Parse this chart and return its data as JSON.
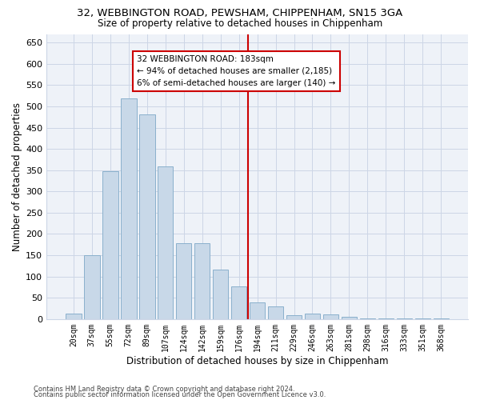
{
  "title_line1": "32, WEBBINGTON ROAD, PEWSHAM, CHIPPENHAM, SN15 3GA",
  "title_line2": "Size of property relative to detached houses in Chippenham",
  "xlabel": "Distribution of detached houses by size in Chippenham",
  "ylabel": "Number of detached properties",
  "bar_color": "#c8d8e8",
  "bar_edgecolor": "#8ab0cc",
  "vline_color": "#cc0000",
  "vline_bin": 9,
  "annotation_text": "32 WEBBINGTON ROAD: 183sqm\n← 94% of detached houses are smaller (2,185)\n6% of semi-detached houses are larger (140) →",
  "annotation_box_color": "#cc0000",
  "categories": [
    "20sqm",
    "37sqm",
    "55sqm",
    "72sqm",
    "89sqm",
    "107sqm",
    "124sqm",
    "142sqm",
    "159sqm",
    "176sqm",
    "194sqm",
    "211sqm",
    "229sqm",
    "246sqm",
    "263sqm",
    "281sqm",
    "298sqm",
    "316sqm",
    "333sqm",
    "351sqm",
    "368sqm"
  ],
  "values": [
    12,
    150,
    347,
    519,
    481,
    358,
    179,
    179,
    116,
    77,
    39,
    29,
    10,
    12,
    11,
    5,
    2,
    1,
    1,
    1,
    1
  ],
  "ylim": [
    0,
    670
  ],
  "yticks": [
    0,
    50,
    100,
    150,
    200,
    250,
    300,
    350,
    400,
    450,
    500,
    550,
    600,
    650
  ],
  "grid_color": "#ccd6e6",
  "background_color": "#eef2f8",
  "footer_line1": "Contains HM Land Registry data © Crown copyright and database right 2024.",
  "footer_line2": "Contains public sector information licensed under the Open Government Licence v3.0.",
  "fig_width": 6.0,
  "fig_height": 5.0,
  "dpi": 100
}
